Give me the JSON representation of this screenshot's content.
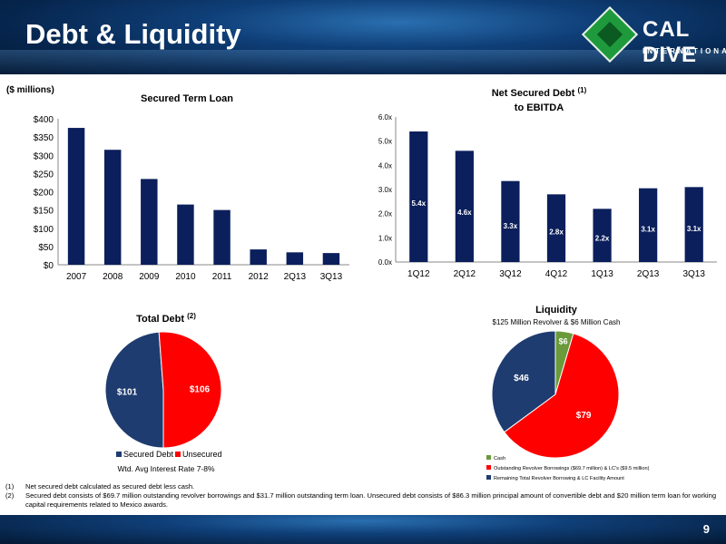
{
  "header": {
    "title": "Debt & Liquidity"
  },
  "logo": {
    "brand": "CAL DIVE",
    "subtitle": "INTERNATIONAL"
  },
  "units_label": "($ millions)",
  "colors": {
    "navy": "#0b1f5c",
    "red": "#ff0000",
    "green": "#6a9a3a",
    "darkblue": "#1f3c70",
    "header": "#0f3f78"
  },
  "chart_data": [
    {
      "type": "bar",
      "title": "Secured Term Loan",
      "categories": [
        "2007",
        "2008",
        "2009",
        "2010",
        "2011",
        "2012",
        "2Q13",
        "3Q13"
      ],
      "values": [
        375,
        315,
        235,
        165,
        150,
        42,
        34,
        32
      ],
      "ylim": [
        0,
        400
      ],
      "yticks": [
        "$0",
        "$50",
        "$100",
        "$150",
        "$200",
        "$250",
        "$300",
        "$350",
        "$400"
      ],
      "grid": false
    },
    {
      "type": "bar",
      "title": "Net Secured Debt",
      "title_sup": "(1)",
      "title_line2": "to EBITDA",
      "categories": [
        "1Q12",
        "2Q12",
        "3Q12",
        "4Q12",
        "1Q13",
        "2Q13",
        "3Q13"
      ],
      "values": [
        5.4,
        4.6,
        3.35,
        2.8,
        2.2,
        3.05,
        3.1
      ],
      "data_labels": [
        "5.4x",
        "4.6x",
        "3.3x",
        "2.8x",
        "2.2x",
        "3.1x",
        "3.1x"
      ],
      "ylim": [
        0,
        6
      ],
      "yticks": [
        "0.0x",
        "1.0x",
        "2.0x",
        "3.0x",
        "4.0x",
        "5.0x",
        "6.0x"
      ],
      "grid": false
    },
    {
      "type": "pie",
      "title": "Total Debt",
      "title_sup": "(2)",
      "slices": [
        {
          "name": "Secured Debt",
          "value": 101,
          "label": "$101",
          "color": "#1f3c70"
        },
        {
          "name": "Unsecured",
          "value": 106,
          "label": "$106",
          "color": "#ff0000"
        }
      ],
      "footnote": "Wtd. Avg Interest Rate 7-8%",
      "legend": "bottom"
    },
    {
      "type": "pie",
      "title": "Liquidity",
      "subtitle": "$125 Million Revolver & $6 Million Cash",
      "slices": [
        {
          "name": "Cash",
          "value": 6,
          "label": "$6",
          "color": "#6a9a3a"
        },
        {
          "name": "Outstanding Revolver Borrowings ($69.7 million) & LC's ($9.5 million)",
          "value": 79,
          "label": "$79",
          "color": "#ff0000"
        },
        {
          "name": "Remaining Total Revolver Borrowing & LC Facility Amount",
          "value": 46,
          "label": "$46",
          "color": "#1f3c70"
        }
      ],
      "legend": "bottom"
    }
  ],
  "notes": [
    {
      "num": "(1)",
      "text": "Net secured debt calculated as secured debt less cash."
    },
    {
      "num": "(2)",
      "text": "Secured debt consists of $69.7 million outstanding revolver borrowings and $31.7 million outstanding term loan. Unsecured debt consists of $86.3 million principal amount of convertible debt and $20 million term loan for working capital requirements related to Mexico awards."
    }
  ],
  "page_number": "9"
}
